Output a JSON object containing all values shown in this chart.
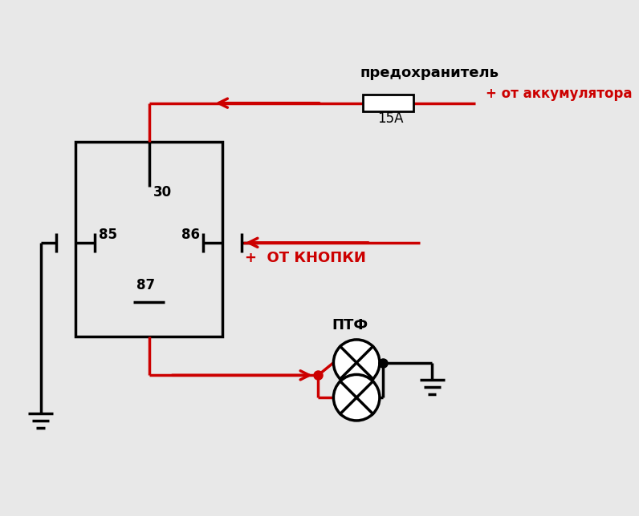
{
  "bg_color": "#e8e8e8",
  "BLACK": "#000000",
  "RED": "#cc0000",
  "label_fuse": "предохранитель",
  "label_15A": "15A",
  "label_battery": "+ от аккумулятора",
  "label_30": "30",
  "label_85": "85",
  "label_86": "86",
  "label_87": "87",
  "label_button": "+  ОТ КНОПКИ",
  "label_ptf": "ПТФ",
  "lw": 2.5
}
